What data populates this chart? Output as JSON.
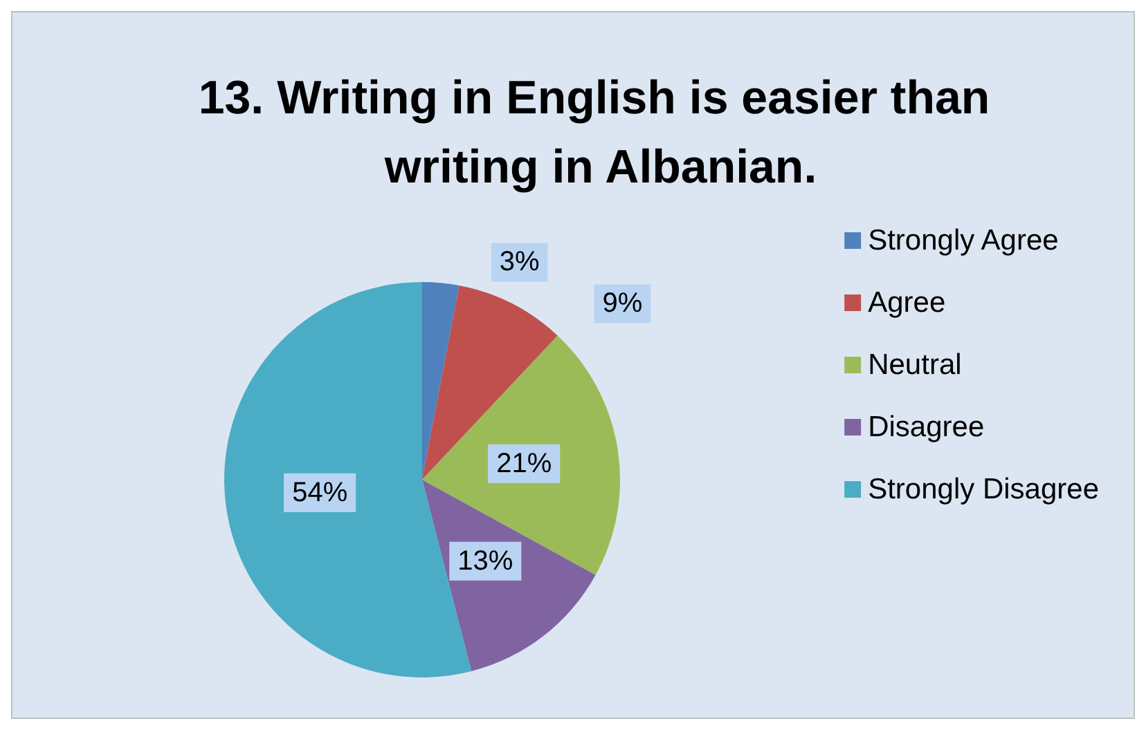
{
  "chart_data": {
    "type": "pie",
    "title": "13. Writing in English is easier than writing in Albanian.",
    "categories": [
      "Strongly Agree",
      "Agree",
      "Neutral",
      "Disagree",
      "Strongly Disagree"
    ],
    "values": [
      3,
      9,
      21,
      13,
      54
    ],
    "colors": [
      "#4f81bd",
      "#c0504d",
      "#9bbb59",
      "#8064a2",
      "#4bacc6"
    ],
    "value_labels": [
      "3%",
      "9%",
      "21%",
      "13%",
      "54%"
    ],
    "legend": "right"
  }
}
